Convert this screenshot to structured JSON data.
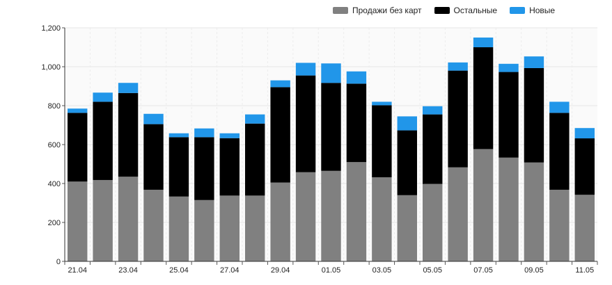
{
  "chart_data": {
    "type": "bar",
    "stacked": true,
    "categories": [
      "21.04",
      "22.04",
      "23.04",
      "24.04",
      "25.04",
      "26.04",
      "27.04",
      "28.04",
      "29.04",
      "30.04",
      "01.05",
      "02.05",
      "03.05",
      "04.05",
      "05.05",
      "06.05",
      "07.05",
      "08.05",
      "09.05",
      "10.05",
      "11.05"
    ],
    "x_tick_labels": [
      "21.04",
      "23.04",
      "25.04",
      "27.04",
      "29.04",
      "01.05",
      "03.05",
      "05.05",
      "07.05",
      "09.05",
      "11.05"
    ],
    "series": [
      {
        "name": "Продажи без карт",
        "color": "#808080",
        "values": [
          410,
          418,
          435,
          368,
          333,
          315,
          338,
          338,
          405,
          458,
          465,
          510,
          432,
          340,
          398,
          483,
          577,
          533,
          508,
          368,
          342
        ]
      },
      {
        "name": "Остальные",
        "color": "#000000",
        "values": [
          353,
          402,
          430,
          337,
          305,
          323,
          295,
          370,
          490,
          497,
          452,
          403,
          370,
          333,
          357,
          497,
          523,
          440,
          485,
          395,
          290
        ]
      },
      {
        "name": "Новые",
        "color": "#2196e9",
        "values": [
          22,
          47,
          52,
          53,
          20,
          45,
          25,
          47,
          35,
          65,
          100,
          63,
          18,
          72,
          42,
          42,
          50,
          42,
          60,
          57,
          53
        ]
      }
    ],
    "ylim": [
      0,
      1200
    ],
    "y_ticks": [
      0,
      200,
      400,
      600,
      800,
      1000,
      1200
    ],
    "y_tick_labels": [
      "0",
      "200",
      "400",
      "600",
      "800",
      "1,000",
      "1,200"
    ],
    "grid": true,
    "legend_position": "top-right"
  }
}
